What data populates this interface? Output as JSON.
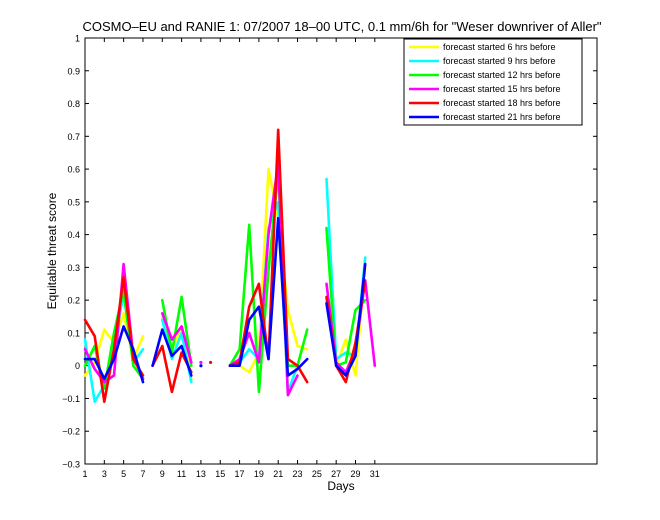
{
  "chart_data": {
    "type": "line",
    "title": "COSMO–EU and RANIE 1: 07/2007 18–00 UTC, 0.1 mm/6h for \"Weser downriver of Aller\"",
    "xlabel": "Days",
    "ylabel": "Equitable threat score",
    "xlim": [
      1,
      54
    ],
    "ylim": [
      -0.3,
      1
    ],
    "xticks": [
      1,
      3,
      5,
      7,
      9,
      11,
      13,
      15,
      17,
      19,
      21,
      23,
      25,
      27,
      29,
      31
    ],
    "yticks": [
      -0.3,
      -0.2,
      -0.1,
      0,
      0.1,
      0.2,
      0.3,
      0.4,
      0.5,
      0.6,
      0.7,
      0.8,
      0.9,
      1
    ],
    "ytick_labels": [
      "−0.3",
      "−0.2",
      "−0.1",
      "0",
      "0.1",
      "0.2",
      "0.3",
      "0.4",
      "0.5",
      "0.6",
      "0.7",
      "0.8",
      "0.9",
      "1"
    ],
    "grid": false,
    "legend_position": "top-right",
    "series": [
      {
        "name": "forecast started 6 hrs before",
        "color": "#ffff00",
        "segments": [
          [
            [
              1,
              -0.03
            ],
            [
              2,
              0.01
            ],
            [
              3,
              0.11
            ],
            [
              4,
              0.07
            ],
            [
              5,
              0.16
            ],
            [
              6,
              0.02
            ],
            [
              7,
              0.09
            ]
          ],
          [
            [
              9,
              0.15
            ],
            [
              10,
              0.05
            ],
            [
              11,
              0.12
            ],
            [
              12,
              -0.04
            ]
          ],
          [
            [
              16,
              0.0
            ],
            [
              17,
              0.0
            ],
            [
              18,
              -0.02
            ],
            [
              19,
              0.04
            ],
            [
              20,
              0.6
            ],
            [
              21,
              0.45
            ],
            [
              22,
              0.17
            ],
            [
              23,
              0.06
            ],
            [
              24,
              0.05
            ]
          ],
          [
            [
              26,
              0.2
            ],
            [
              27,
              0.0
            ],
            [
              28,
              0.08
            ],
            [
              29,
              -0.03
            ],
            [
              30,
              0.3
            ]
          ]
        ]
      },
      {
        "name": "forecast started 9 hrs before",
        "color": "#00ffff",
        "segments": [
          [
            [
              1,
              0.08
            ],
            [
              2,
              -0.11
            ],
            [
              3,
              -0.06
            ],
            [
              4,
              0.06
            ],
            [
              5,
              0.22
            ],
            [
              6,
              0.01
            ],
            [
              7,
              0.05
            ]
          ],
          [
            [
              9,
              0.14
            ],
            [
              10,
              0.02
            ],
            [
              11,
              0.1
            ],
            [
              12,
              -0.05
            ]
          ],
          [
            [
              16,
              0.0
            ],
            [
              17,
              0.01
            ],
            [
              18,
              0.05
            ],
            [
              19,
              0.02
            ],
            [
              20,
              0.42
            ],
            [
              21,
              0.5
            ],
            [
              22,
              -0.08
            ],
            [
              23,
              0.0
            ]
          ],
          [
            [
              26,
              0.57
            ],
            [
              27,
              0.02
            ],
            [
              28,
              0.04
            ],
            [
              29,
              0.03
            ],
            [
              30,
              0.33
            ]
          ]
        ]
      },
      {
        "name": "forecast started 12 hrs before",
        "color": "#00ff00",
        "segments": [
          [
            [
              1,
              0.0
            ],
            [
              2,
              0.06
            ],
            [
              3,
              -0.07
            ],
            [
              4,
              0.1
            ],
            [
              5,
              0.23
            ],
            [
              6,
              0.0
            ],
            [
              7,
              -0.04
            ]
          ],
          [
            [
              9,
              0.2
            ],
            [
              10,
              0.04
            ],
            [
              11,
              0.21
            ],
            [
              12,
              0.0
            ]
          ],
          [
            [
              16,
              0.0
            ],
            [
              17,
              0.05
            ],
            [
              18,
              0.43
            ],
            [
              19,
              -0.08
            ],
            [
              20,
              0.29
            ],
            [
              21,
              0.59
            ],
            [
              22,
              0.0
            ],
            [
              23,
              0.0
            ],
            [
              24,
              0.11
            ]
          ],
          [
            [
              26,
              0.42
            ],
            [
              27,
              0.0
            ],
            [
              28,
              0.01
            ],
            [
              29,
              0.17
            ],
            [
              30,
              0.2
            ]
          ]
        ]
      },
      {
        "name": "forecast started 15 hrs before",
        "color": "#ff00ff",
        "segments": [
          [
            [
              1,
              0.05
            ],
            [
              2,
              -0.01
            ],
            [
              3,
              -0.05
            ],
            [
              4,
              -0.03
            ],
            [
              5,
              0.31
            ],
            [
              6,
              0.03
            ],
            [
              7,
              -0.04
            ]
          ],
          [
            [
              9,
              0.16
            ],
            [
              10,
              0.08
            ],
            [
              11,
              0.12
            ],
            [
              12,
              0.01
            ]
          ],
          [
            [
              16,
              0.0
            ],
            [
              17,
              0.02
            ],
            [
              18,
              0.1
            ],
            [
              19,
              0.01
            ],
            [
              20,
              0.4
            ],
            [
              21,
              0.62
            ],
            [
              22,
              -0.09
            ],
            [
              23,
              -0.03
            ]
          ],
          [
            [
              26,
              0.25
            ],
            [
              27,
              0.01
            ],
            [
              28,
              -0.02
            ],
            [
              29,
              0.05
            ],
            [
              30,
              0.26
            ],
            [
              31,
              0.0
            ]
          ]
        ]
      },
      {
        "name": "forecast started 18 hrs before",
        "color": "#ff0000",
        "segments": [
          [
            [
              1,
              0.14
            ],
            [
              2,
              0.09
            ],
            [
              3,
              -0.11
            ],
            [
              4,
              0.05
            ],
            [
              5,
              0.27
            ],
            [
              6,
              0.02
            ],
            [
              7,
              -0.03
            ]
          ],
          [
            [
              8,
              0.0
            ],
            [
              9,
              0.06
            ],
            [
              10,
              -0.08
            ],
            [
              11,
              0.04
            ],
            [
              12,
              -0.02
            ]
          ],
          [
            [
              16,
              0.0
            ],
            [
              17,
              0.01
            ],
            [
              18,
              0.18
            ],
            [
              19,
              0.25
            ],
            [
              20,
              0.02
            ],
            [
              21,
              0.72
            ],
            [
              22,
              0.02
            ],
            [
              23,
              0.0
            ],
            [
              24,
              -0.05
            ]
          ],
          [
            [
              26,
              0.21
            ],
            [
              27,
              0.0
            ],
            [
              28,
              -0.05
            ],
            [
              29,
              0.07
            ],
            [
              30,
              0.26
            ]
          ]
        ]
      },
      {
        "name": "forecast started 21 hrs before",
        "color": "#0000ff",
        "segments": [
          [
            [
              1,
              0.02
            ],
            [
              2,
              0.02
            ],
            [
              3,
              -0.04
            ],
            [
              4,
              0.02
            ],
            [
              5,
              0.12
            ],
            [
              6,
              0.05
            ],
            [
              7,
              -0.05
            ]
          ],
          [
            [
              8,
              0.0
            ],
            [
              9,
              0.11
            ],
            [
              10,
              0.03
            ],
            [
              11,
              0.06
            ],
            [
              12,
              -0.03
            ]
          ],
          [
            [
              16,
              0.0
            ],
            [
              17,
              0.0
            ],
            [
              18,
              0.14
            ],
            [
              19,
              0.18
            ],
            [
              20,
              0.02
            ],
            [
              21,
              0.45
            ],
            [
              22,
              -0.03
            ],
            [
              23,
              -0.01
            ],
            [
              24,
              0.02
            ]
          ],
          [
            [
              26,
              0.19
            ],
            [
              27,
              0.0
            ],
            [
              28,
              -0.03
            ],
            [
              29,
              0.03
            ],
            [
              30,
              0.31
            ]
          ]
        ]
      }
    ],
    "markers": [
      {
        "x": 13,
        "y": 0.0,
        "color": "#0000ff"
      },
      {
        "x": 13,
        "y": 0.01,
        "color": "#ff00ff"
      },
      {
        "x": 14,
        "y": 0.01,
        "color": "#ff0000"
      }
    ]
  }
}
